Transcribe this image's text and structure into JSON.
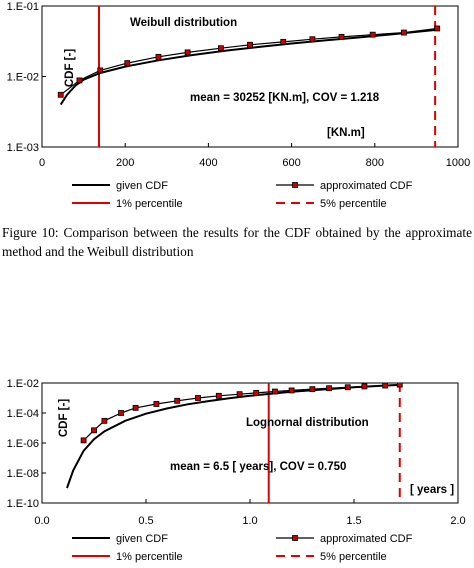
{
  "chart_data": [
    {
      "type": "line",
      "xscale": "linear",
      "yscale": "log",
      "xlim": [
        0,
        1000
      ],
      "ylim": [
        0.001,
        0.1
      ],
      "x_ticks": [
        "0",
        "200",
        "400",
        "600",
        "800",
        "1000"
      ],
      "y_ticks": [
        "1.E-03",
        "1.E-02",
        "1.E-01"
      ],
      "annotations": {
        "title": "Weibull distribution",
        "ylabel": "CDF [-]",
        "stats": "mean = 30252 [KN.m], COV = 1.218",
        "unit": "[KN.m]"
      },
      "series": [
        {
          "name": "given CDF",
          "style": "line",
          "color": "#000000",
          "x": [
            45,
            60,
            80,
            100,
            140,
            200,
            280,
            360,
            440,
            520,
            600,
            680,
            760,
            840,
            950
          ],
          "y": [
            0.004,
            0.0055,
            0.0074,
            0.009,
            0.0112,
            0.0138,
            0.017,
            0.0201,
            0.0232,
            0.0262,
            0.0294,
            0.0325,
            0.0358,
            0.0395,
            0.046
          ]
        },
        {
          "name": "approximated CDF",
          "style": "line-markers",
          "color": "#cc0000",
          "x": [
            45,
            90,
            140,
            205,
            280,
            350,
            430,
            500,
            580,
            650,
            720,
            795,
            870,
            950
          ],
          "y": [
            0.0055,
            0.0088,
            0.0122,
            0.0155,
            0.019,
            0.022,
            0.0252,
            0.0282,
            0.031,
            0.0338,
            0.0365,
            0.0392,
            0.042,
            0.048
          ]
        }
      ],
      "vlines": [
        {
          "name": "1% percentile",
          "x": 137,
          "color": "#e00000",
          "dash": "solid"
        },
        {
          "name": "5% percentile",
          "x": 945,
          "color": "#e00000",
          "dash": "dashed"
        }
      ],
      "legend": [
        "given CDF",
        "approximated CDF",
        "1% percentile",
        "5% percentile"
      ]
    },
    {
      "type": "line",
      "xscale": "linear",
      "yscale": "log",
      "xlim": [
        0,
        2.0
      ],
      "ylim": [
        1e-10,
        0.01
      ],
      "x_ticks": [
        "0.0",
        "0.5",
        "1.0",
        "1.5",
        "2.0"
      ],
      "y_ticks": [
        "1.E-10",
        "1.E-08",
        "1.E-06",
        "1.E-04",
        "1.E-02"
      ],
      "annotations": {
        "title": "Lognornal distribution",
        "ylabel": "CDF [-]",
        "stats": "mean = 6.5 [ years], COV = 0.750",
        "unit": "[ years ]"
      },
      "series": [
        {
          "name": "given CDF",
          "style": "line",
          "color": "#000000",
          "x": [
            0.12,
            0.15,
            0.2,
            0.25,
            0.3,
            0.4,
            0.5,
            0.6,
            0.7,
            0.8,
            0.9,
            1.0,
            1.1,
            1.2,
            1.3,
            1.4,
            1.5,
            1.6,
            1.72
          ],
          "y": [
            1e-09,
            1.5e-08,
            3e-07,
            1.8e-06,
            6e-06,
            3e-05,
            9e-05,
            0.0002,
            0.00038,
            0.00062,
            0.00095,
            0.0014,
            0.0019,
            0.0026,
            0.0033,
            0.0042,
            0.0052,
            0.0062,
            0.0075
          ]
        },
        {
          "name": "approximated CDF",
          "style": "line-markers",
          "color": "#cc0000",
          "x": [
            0.2,
            0.25,
            0.3,
            0.38,
            0.45,
            0.55,
            0.65,
            0.75,
            0.85,
            0.95,
            1.03,
            1.12,
            1.2,
            1.3,
            1.38,
            1.47,
            1.55,
            1.65,
            1.72
          ],
          "y": [
            1.5e-06,
            7e-06,
            3e-05,
            0.0001,
            0.00022,
            0.0004,
            0.00065,
            0.001,
            0.0014,
            0.0018,
            0.0022,
            0.0027,
            0.0032,
            0.0039,
            0.0045,
            0.0052,
            0.0059,
            0.0068,
            0.0078
          ]
        }
      ],
      "vlines": [
        {
          "name": "1% percentile",
          "x": 1.09,
          "color": "#e00000",
          "dash": "solid"
        },
        {
          "name": "5% percentile",
          "x": 1.72,
          "color": "#e00000",
          "dash": "dashed"
        }
      ],
      "legend": [
        "given CDF",
        "approximated CDF",
        "1% percentile",
        "5% percentile"
      ]
    }
  ],
  "caption": "Figure 10: Comparison between the results for the CDF obtained by the approximate method and the Weibull distribution"
}
